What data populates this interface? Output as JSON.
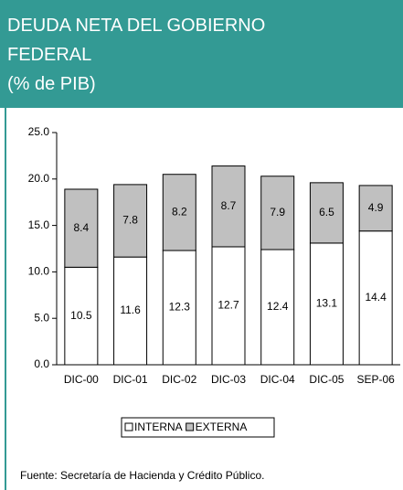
{
  "chart_data": {
    "type": "stacked_bar",
    "title": "DEUDA NETA DEL GOBIERNO FEDERAL",
    "subtitle": "(% de PIB)",
    "categories": [
      "DIC-00",
      "DIC-01",
      "DIC-02",
      "DIC-03",
      "DIC-04",
      "DIC-05",
      "SEP-06"
    ],
    "series": [
      {
        "name": "INTERNA",
        "color": "#ffffff",
        "values": [
          10.5,
          11.6,
          12.3,
          12.7,
          12.4,
          13.1,
          14.4
        ]
      },
      {
        "name": "EXTERNA",
        "color": "#c0c0c0",
        "values": [
          8.4,
          7.8,
          8.2,
          8.7,
          7.9,
          6.5,
          4.9
        ]
      }
    ],
    "ylim": [
      0,
      25
    ],
    "yticks": [
      {
        "value": 0,
        "label": "0.0"
      },
      {
        "value": 5,
        "label": "5.0"
      },
      {
        "value": 10,
        "label": "10.0"
      },
      {
        "value": 15,
        "label": "15.0"
      },
      {
        "value": 20,
        "label": "20.0"
      },
      {
        "value": 25,
        "label": "25.0"
      }
    ],
    "grid": false,
    "legend": "bottom",
    "source": "Fuente: Secretaría de Hacienda y Crédito Público."
  }
}
